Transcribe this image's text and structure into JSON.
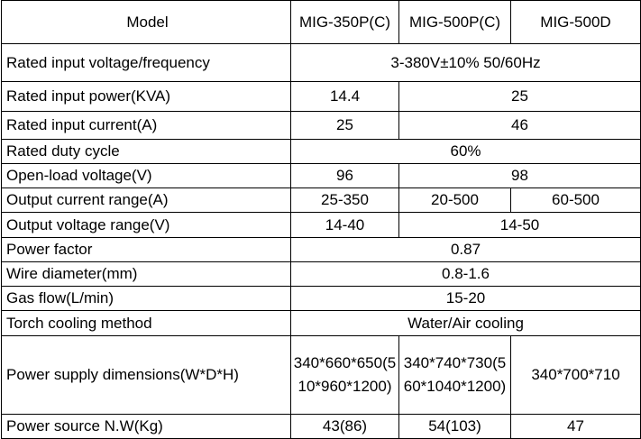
{
  "table": {
    "header": [
      "Model",
      "MIG-350P(C)",
      "MIG-500P(C)",
      "MIG-500D"
    ],
    "rows": [
      [
        "Rated input voltage/frequency",
        "3-380V±10% 50/60Hz"
      ],
      [
        "Rated input power(KVA)",
        "14.4",
        "25"
      ],
      [
        "Rated input current(A)",
        "25",
        "46"
      ],
      [
        "Rated duty cycle",
        "60%"
      ],
      [
        "Open-load voltage(V)",
        "96",
        "98"
      ],
      [
        "Output current range(A)",
        "25-350",
        "20-500",
        "60-500"
      ],
      [
        "Output voltage range(V)",
        "14-40",
        "14-50"
      ],
      [
        "Power factor",
        "0.87"
      ],
      [
        "Wire diameter(mm)",
        "0.8-1.6"
      ],
      [
        "Gas flow(L/min)",
        "15-20"
      ],
      [
        "Torch cooling method",
        "Water/Air cooling"
      ],
      [
        "Power supply dimensions(W*D*H)",
        "340*660*650(510*960*1200)",
        "340*740*730(560*1040*1200)",
        "340*700*710"
      ],
      [
        "Power source N.W(Kg)",
        "43(86)",
        "54(103)",
        "47"
      ]
    ]
  }
}
